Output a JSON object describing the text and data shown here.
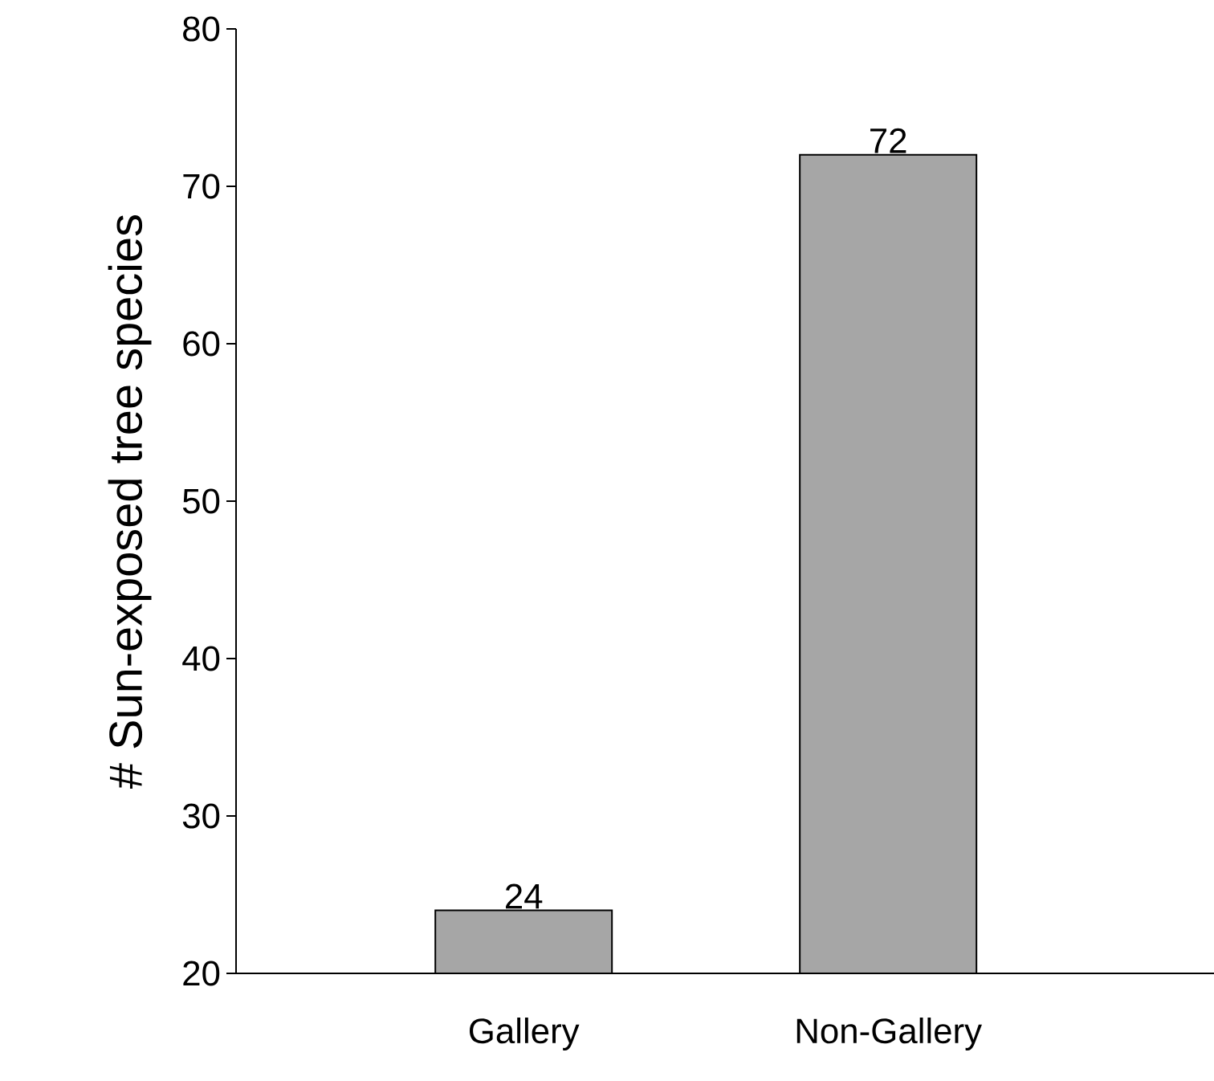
{
  "chart_data": {
    "type": "bar",
    "ylabel": "# Sun-exposed tree species",
    "categories": [
      "Gallery",
      "Non-Gallery"
    ],
    "values": [
      24,
      72
    ],
    "color": "#a6a6a6",
    "ylim": [
      20,
      80
    ],
    "yticks": [
      20,
      30,
      40,
      50,
      60,
      70,
      80
    ],
    "grid": false,
    "data_labels": true
  }
}
